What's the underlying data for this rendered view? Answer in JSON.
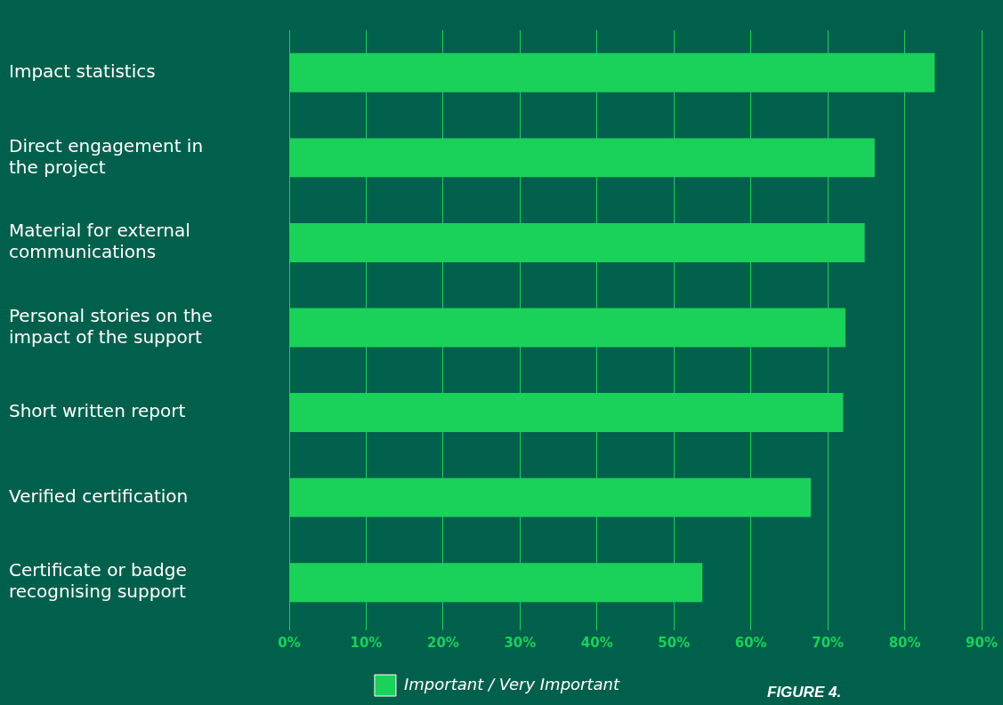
{
  "chart_data": {
    "type": "bar",
    "orientation": "horizontal",
    "categories": [
      "Impact statistics",
      "Direct engagement in the project",
      "Material for external communications",
      "Personal stories on the impact of the support",
      "Short written report",
      "Verified certification",
      "Certificate or badge recognising support"
    ],
    "series": [
      {
        "name": "Important / Very Important",
        "color": "#1ad15a",
        "values": [
          83.9,
          76.1,
          74.8,
          72.3,
          72.0,
          67.8,
          53.7
        ]
      }
    ],
    "xlim": [
      0,
      90
    ],
    "xticks": [
      {
        "value": 0,
        "label": "0%"
      },
      {
        "value": 10,
        "label": "10%"
      },
      {
        "value": 20,
        "label": "20%"
      },
      {
        "value": 30,
        "label": "30%"
      },
      {
        "value": 40,
        "label": "40%"
      },
      {
        "value": 50,
        "label": "50%"
      },
      {
        "value": 60,
        "label": "60%"
      },
      {
        "value": 70,
        "label": "70%"
      },
      {
        "value": 80,
        "label": "80%"
      },
      {
        "value": 90,
        "label": "90%"
      }
    ],
    "grid": "x",
    "legend": "bottom",
    "annotations": [
      "FIGURE 4."
    ]
  }
}
